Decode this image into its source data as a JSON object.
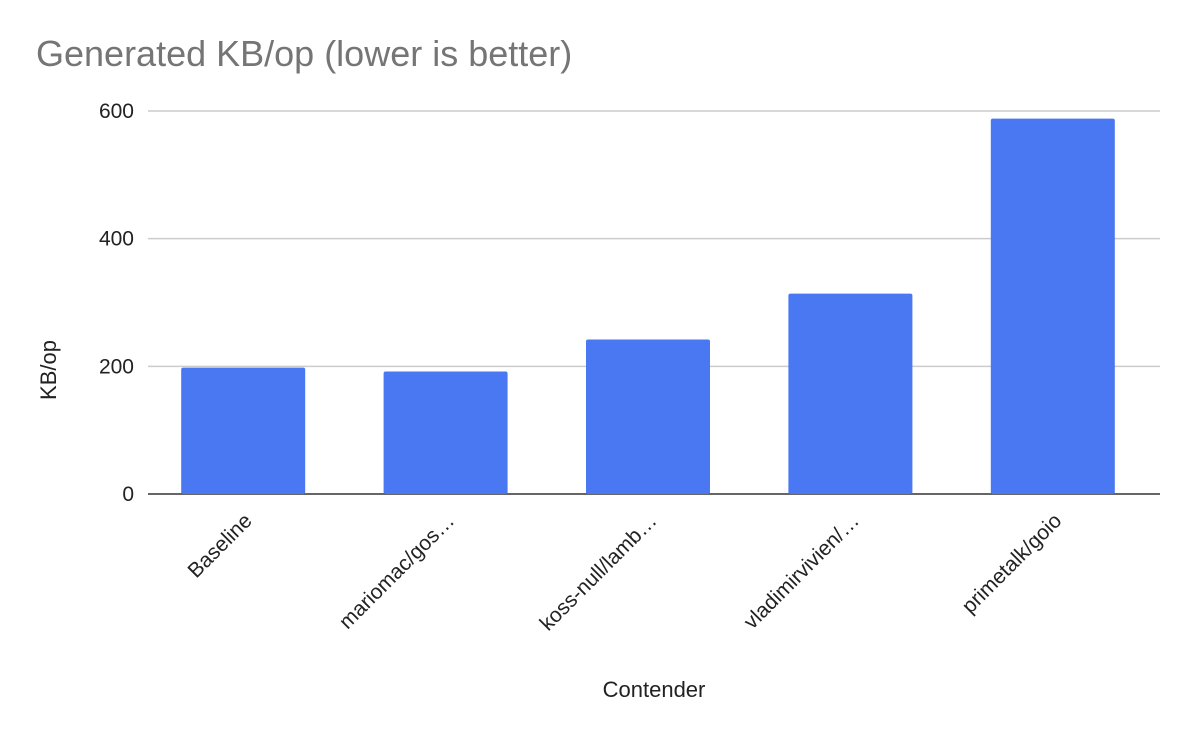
{
  "chart_data": {
    "type": "bar",
    "title": "Generated KB/op (lower is better)",
    "xlabel": "Contender",
    "ylabel": "KB/op",
    "categories": [
      "Baseline",
      "mariomac/gos…",
      "koss-null/lamb…",
      "vladimirvivien/…",
      "primetalk/goio"
    ],
    "values": [
      198,
      192,
      242,
      314,
      588
    ],
    "ylim": [
      0,
      600
    ],
    "yticks": [
      0,
      200,
      400,
      600
    ],
    "ytick_labels": [
      "0",
      "200",
      "400",
      "600"
    ],
    "grid": true,
    "legend": "none",
    "bar_color": "#4a77f2"
  }
}
